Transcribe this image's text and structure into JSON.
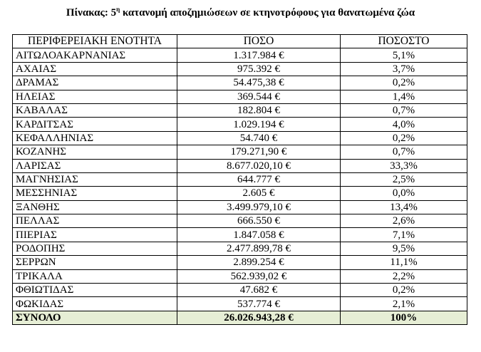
{
  "caption": {
    "prefix": "Πίνακας: 5",
    "superscript": "η",
    "suffix": " κατανομή αποζημιώσεων σε κτηνοτρόφους για θανατωμένα ζώα"
  },
  "table": {
    "headers": [
      "ΠΕΡΙΦΕΡΕΙΑΚΗ ΕΝΟΤΗΤΑ",
      "ΠΟΣΟ",
      "ΠΟΣΟΣΤΟ"
    ],
    "rows": [
      {
        "region": "ΑΙΤΩΛΟΑΚΑΡΝΑΝΙΑΣ",
        "amount": "1.317.984 €",
        "pct": "5,1%"
      },
      {
        "region": "ΑΧΑΙΑΣ",
        "amount": "975.392 €",
        "pct": "3,7%"
      },
      {
        "region": "ΔΡΑΜΑΣ",
        "amount": "54.475,38 €",
        "pct": "0,2%"
      },
      {
        "region": "ΗΛΕΙΑΣ",
        "amount": "369.544 €",
        "pct": "1,4%"
      },
      {
        "region": "ΚΑΒΑΛΑΣ",
        "amount": "182.804 €",
        "pct": "0,7%"
      },
      {
        "region": "ΚΑΡΔΙΤΣΑΣ",
        "amount": "1.029.194 €",
        "pct": "4,0%"
      },
      {
        "region": "ΚΕΦΑΛΛΗΝΙΑΣ",
        "amount": "54.740 €",
        "pct": "0,2%"
      },
      {
        "region": "ΚΟΖΑΝΗΣ",
        "amount": "179.271,90 €",
        "pct": "0,7%"
      },
      {
        "region": "ΛΑΡΙΣΑΣ",
        "amount": "8.677.020,10 €",
        "pct": "33,3%"
      },
      {
        "region": "ΜΑΓΝΗΣΙΑΣ",
        "amount": "644.777 €",
        "pct": "2,5%"
      },
      {
        "region": "ΜΕΣΣΗΝΙΑΣ",
        "amount": "2.605 €",
        "pct": "0,0%"
      },
      {
        "region": "ΞΑΝΘΗΣ",
        "amount": "3.499.979,10 €",
        "pct": "13,4%"
      },
      {
        "region": "ΠΕΛΛΑΣ",
        "amount": "666.550 €",
        "pct": "2,6%"
      },
      {
        "region": "ΠΙΕΡΙΑΣ",
        "amount": "1.847.058 €",
        "pct": "7,1%"
      },
      {
        "region": "ΡΟΔΟΠΗΣ",
        "amount": "2.477.899,78 €",
        "pct": "9,5%"
      },
      {
        "region": "ΣΕΡΡΩΝ",
        "amount": "2.899.254 €",
        "pct": "11,1%"
      },
      {
        "region": "ΤΡΙΚΑΛΑ",
        "amount": "562.939,02 €",
        "pct": "2,2%"
      },
      {
        "region": "ΦΘΙΩΤΙΔΑΣ",
        "amount": "47.682 €",
        "pct": "0,2%"
      },
      {
        "region": "ΦΩΚΙΔΑΣ",
        "amount": "537.774 €",
        "pct": "2,1%"
      }
    ],
    "total": {
      "region": "ΣΥΝΟΛΟ",
      "amount": "26.026.943,28 €",
      "pct": "100%"
    },
    "total_row_color": "#e6eed5"
  }
}
